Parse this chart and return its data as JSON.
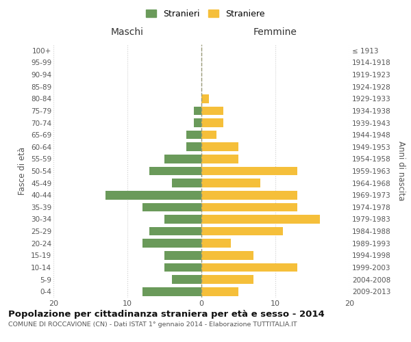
{
  "age_groups": [
    "0-4",
    "5-9",
    "10-14",
    "15-19",
    "20-24",
    "25-29",
    "30-34",
    "35-39",
    "40-44",
    "45-49",
    "50-54",
    "55-59",
    "60-64",
    "65-69",
    "70-74",
    "75-79",
    "80-84",
    "85-89",
    "90-94",
    "95-99",
    "100+"
  ],
  "birth_years": [
    "2009-2013",
    "2004-2008",
    "1999-2003",
    "1994-1998",
    "1989-1993",
    "1984-1988",
    "1979-1983",
    "1974-1978",
    "1969-1973",
    "1964-1968",
    "1959-1963",
    "1954-1958",
    "1949-1953",
    "1944-1948",
    "1939-1943",
    "1934-1938",
    "1929-1933",
    "1924-1928",
    "1919-1923",
    "1914-1918",
    "≤ 1913"
  ],
  "maschi": [
    8,
    4,
    5,
    5,
    8,
    7,
    5,
    8,
    13,
    4,
    7,
    5,
    2,
    2,
    1,
    1,
    0,
    0,
    0,
    0,
    0
  ],
  "femmine": [
    5,
    7,
    13,
    7,
    4,
    11,
    16,
    13,
    13,
    8,
    13,
    5,
    5,
    2,
    3,
    3,
    1,
    0,
    0,
    0,
    0
  ],
  "color_maschi": "#6a9a5a",
  "color_femmine": "#f5bf3a",
  "title": "Popolazione per cittadinanza straniera per età e sesso - 2014",
  "subtitle": "COMUNE DI ROCCAVIONE (CN) - Dati ISTAT 1° gennaio 2014 - Elaborazione TUTTITALIA.IT",
  "xlabel_left": "Maschi",
  "xlabel_right": "Femmine",
  "ylabel_left": "Fasce di età",
  "ylabel_right": "Anni di nascita",
  "legend_maschi": "Stranieri",
  "legend_femmine": "Straniere",
  "xlim": 20,
  "background_color": "#ffffff",
  "grid_color": "#cccccc",
  "dashed_line_color": "#999977"
}
